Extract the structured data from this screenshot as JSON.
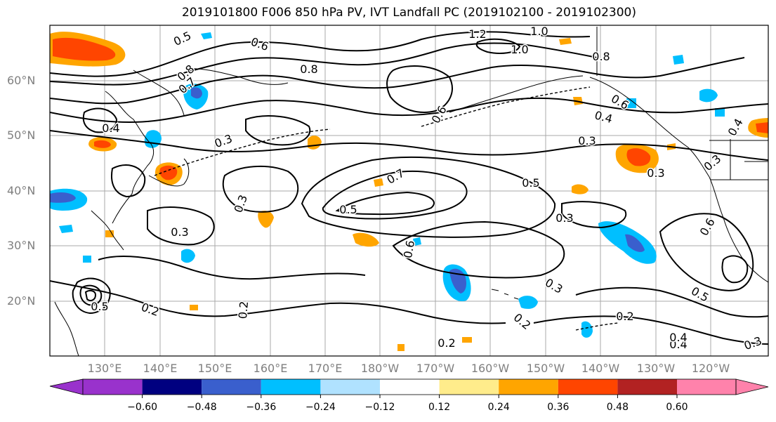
{
  "title": "2019101800 F006 850 hPa PV, IVT Landfall PC (2019102100 - 2019102300)",
  "lat_labels": [
    "60°N",
    "50°N",
    "40°N",
    "30°N",
    "20°N"
  ],
  "lon_labels": [
    "130°E",
    "140°E",
    "150°E",
    "160°E",
    "170°E",
    "180°W",
    "170°W",
    "160°W",
    "150°W",
    "140°W",
    "130°W",
    "120°W"
  ],
  "colorbar": {
    "ticks": [
      "−0.60",
      "−0.48",
      "−0.36",
      "−0.24",
      "−0.12",
      "0.12",
      "0.24",
      "0.36",
      "0.48",
      "0.60"
    ],
    "colors": [
      "#9932cc",
      "#000080",
      "#3a5fcd",
      "#00bfff",
      "#b0e2ff",
      "#ffffff",
      "#ffec8b",
      "#ffa500",
      "#ff4500",
      "#b22222",
      "#ff82ab"
    ]
  },
  "contour_labels": [
    "0.5",
    "0.6",
    "0.8",
    "0.7",
    "0.8",
    "1.2",
    "1.0",
    "1.0",
    "0.8",
    "0.6",
    "0.4",
    "0.4",
    "0.3",
    "0.3",
    "0.6",
    "0.7",
    "0.5",
    "0.3",
    "0.5",
    "0.3",
    "0.2",
    "0.2",
    "0.3",
    "0.2",
    "0.2",
    "0.5",
    "0.4",
    "0.3",
    "0.3",
    "0.6",
    "0.2",
    "0.5",
    "0.4",
    "0.4",
    "0.3",
    "0.3",
    "0.6"
  ]
}
